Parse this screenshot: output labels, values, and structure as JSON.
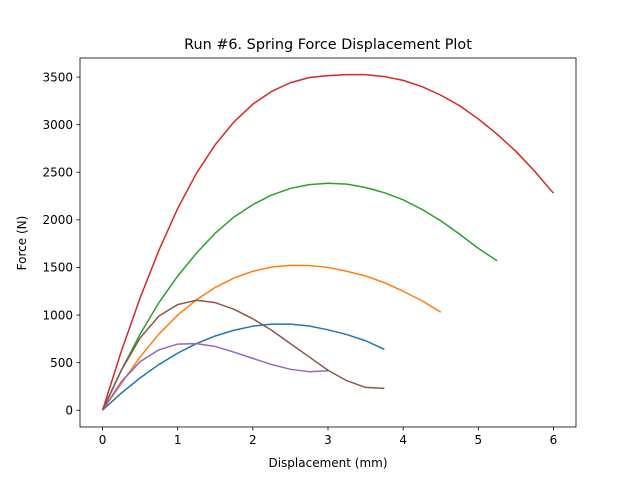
{
  "chart_data": {
    "type": "line",
    "title": "Run #6. Spring Force Displacement Plot",
    "xlabel": "Displacement (mm)",
    "ylabel": "Force (N)",
    "xlim": [
      -0.3,
      6.3
    ],
    "ylim": [
      -176,
      3700
    ],
    "xticks": [
      0,
      1,
      2,
      3,
      4,
      5,
      6
    ],
    "yticks": [
      0,
      500,
      1000,
      1500,
      2000,
      2500,
      3000,
      3500
    ],
    "xtick_labels": [
      "0",
      "1",
      "2",
      "3",
      "4",
      "5",
      "6"
    ],
    "ytick_labels": [
      "0",
      "500",
      "1000",
      "1500",
      "2000",
      "2500",
      "3000",
      "3500"
    ],
    "grid": false,
    "legend": false,
    "series": [
      {
        "color": "#1f77b4",
        "points": [
          [
            0,
            0
          ],
          [
            0.25,
            180
          ],
          [
            0.5,
            340
          ],
          [
            0.75,
            480
          ],
          [
            1.0,
            600
          ],
          [
            1.25,
            700
          ],
          [
            1.5,
            780
          ],
          [
            1.75,
            840
          ],
          [
            2.0,
            883
          ],
          [
            2.25,
            905
          ],
          [
            2.5,
            905
          ],
          [
            2.75,
            885
          ],
          [
            3.0,
            845
          ],
          [
            3.25,
            795
          ],
          [
            3.5,
            730
          ],
          [
            3.75,
            640
          ]
        ]
      },
      {
        "color": "#ff7f0e",
        "points": [
          [
            0,
            0
          ],
          [
            0.25,
            280
          ],
          [
            0.5,
            560
          ],
          [
            0.75,
            800
          ],
          [
            1.0,
            1000
          ],
          [
            1.25,
            1160
          ],
          [
            1.5,
            1290
          ],
          [
            1.75,
            1390
          ],
          [
            2.0,
            1460
          ],
          [
            2.25,
            1505
          ],
          [
            2.5,
            1522
          ],
          [
            2.75,
            1520
          ],
          [
            3.0,
            1500
          ],
          [
            3.25,
            1460
          ],
          [
            3.5,
            1410
          ],
          [
            3.75,
            1340
          ],
          [
            4.0,
            1250
          ],
          [
            4.25,
            1150
          ],
          [
            4.5,
            1030
          ]
        ]
      },
      {
        "color": "#2ca02c",
        "points": [
          [
            0,
            0
          ],
          [
            0.25,
            420
          ],
          [
            0.5,
            800
          ],
          [
            0.75,
            1130
          ],
          [
            1.0,
            1410
          ],
          [
            1.25,
            1650
          ],
          [
            1.5,
            1860
          ],
          [
            1.75,
            2030
          ],
          [
            2.0,
            2160
          ],
          [
            2.25,
            2260
          ],
          [
            2.5,
            2330
          ],
          [
            2.75,
            2370
          ],
          [
            3.0,
            2385
          ],
          [
            3.25,
            2375
          ],
          [
            3.5,
            2340
          ],
          [
            3.75,
            2285
          ],
          [
            4.0,
            2210
          ],
          [
            4.25,
            2110
          ],
          [
            4.5,
            1990
          ],
          [
            4.75,
            1850
          ],
          [
            5.0,
            1700
          ],
          [
            5.25,
            1570
          ]
        ]
      },
      {
        "color": "#d62728",
        "points": [
          [
            0,
            0
          ],
          [
            0.25,
            620
          ],
          [
            0.5,
            1180
          ],
          [
            0.75,
            1680
          ],
          [
            1.0,
            2120
          ],
          [
            1.25,
            2490
          ],
          [
            1.5,
            2790
          ],
          [
            1.75,
            3030
          ],
          [
            2.0,
            3215
          ],
          [
            2.25,
            3350
          ],
          [
            2.5,
            3440
          ],
          [
            2.75,
            3495
          ],
          [
            3.0,
            3515
          ],
          [
            3.25,
            3525
          ],
          [
            3.5,
            3525
          ],
          [
            3.75,
            3505
          ],
          [
            4.0,
            3465
          ],
          [
            4.25,
            3400
          ],
          [
            4.5,
            3310
          ],
          [
            4.75,
            3200
          ],
          [
            5.0,
            3060
          ],
          [
            5.25,
            2900
          ],
          [
            5.5,
            2720
          ],
          [
            5.75,
            2510
          ],
          [
            6.0,
            2280
          ]
        ]
      },
      {
        "color": "#9467bd",
        "points": [
          [
            0,
            0
          ],
          [
            0.25,
            300
          ],
          [
            0.5,
            510
          ],
          [
            0.75,
            635
          ],
          [
            1.0,
            695
          ],
          [
            1.25,
            700
          ],
          [
            1.5,
            670
          ],
          [
            1.75,
            610
          ],
          [
            2.0,
            545
          ],
          [
            2.25,
            480
          ],
          [
            2.5,
            430
          ],
          [
            2.75,
            405
          ],
          [
            3.0,
            415
          ]
        ]
      },
      {
        "color": "#8c564b",
        "points": [
          [
            0,
            0
          ],
          [
            0.25,
            420
          ],
          [
            0.5,
            760
          ],
          [
            0.75,
            990
          ],
          [
            1.0,
            1110
          ],
          [
            1.25,
            1155
          ],
          [
            1.5,
            1130
          ],
          [
            1.75,
            1060
          ],
          [
            2.0,
            960
          ],
          [
            2.25,
            840
          ],
          [
            2.5,
            700
          ],
          [
            2.75,
            560
          ],
          [
            3.0,
            420
          ],
          [
            3.25,
            310
          ],
          [
            3.5,
            240
          ],
          [
            3.75,
            230
          ]
        ]
      }
    ]
  }
}
